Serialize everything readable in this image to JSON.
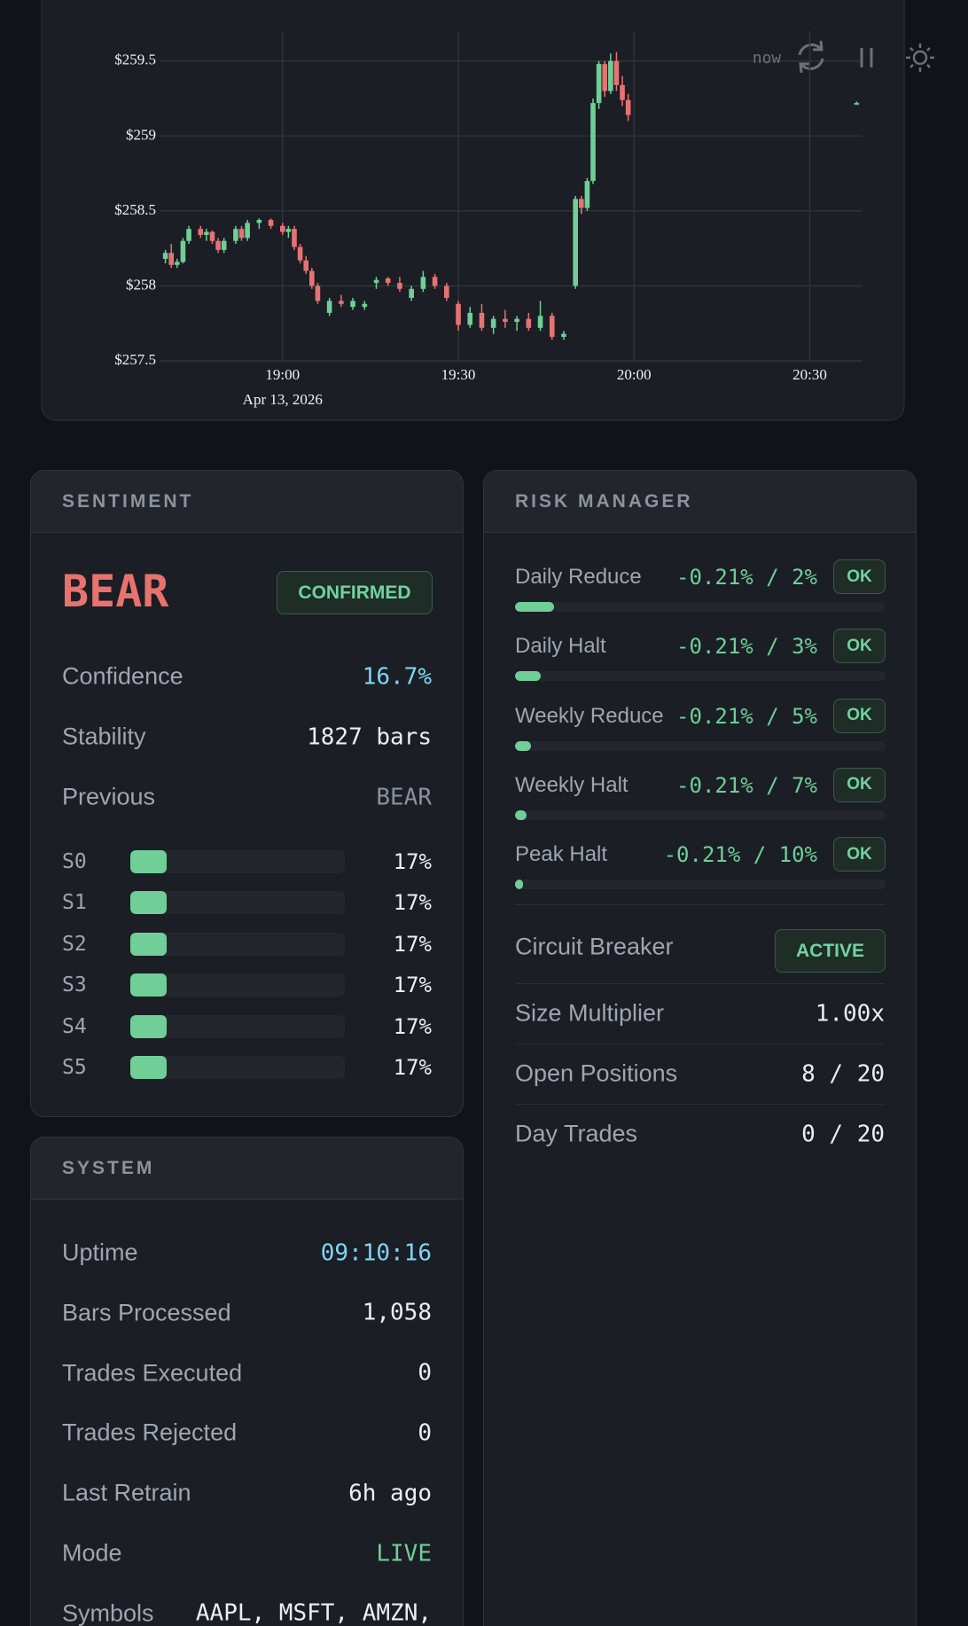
{
  "chart_data": {
    "type": "candlestick",
    "x": [
      "18:40",
      "18:41",
      "18:42",
      "18:43",
      "18:44",
      "18:46",
      "18:47",
      "18:48",
      "18:49",
      "18:50",
      "18:52",
      "18:53",
      "18:54",
      "18:56",
      "18:58",
      "19:00",
      "19:01",
      "19:02",
      "19:03",
      "19:04",
      "19:05",
      "19:06",
      "19:08",
      "19:10",
      "19:12",
      "19:14",
      "19:16",
      "19:18",
      "19:20",
      "19:22",
      "19:24",
      "19:26",
      "19:28",
      "19:30",
      "19:32",
      "19:34",
      "19:36",
      "19:38",
      "19:40",
      "19:42",
      "19:44",
      "19:46",
      "19:48",
      "19:50",
      "19:51",
      "19:52",
      "19:53",
      "19:54",
      "19:55",
      "19:56",
      "19:57",
      "19:58",
      "19:59",
      "20:38"
    ],
    "open": [
      258.18,
      258.22,
      258.14,
      258.16,
      258.3,
      258.38,
      258.34,
      258.36,
      258.3,
      258.24,
      258.3,
      258.38,
      258.32,
      258.42,
      258.44,
      258.4,
      258.36,
      258.38,
      258.26,
      258.17,
      258.1,
      258.0,
      257.82,
      257.9,
      257.86,
      257.86,
      258.02,
      258.05,
      258.02,
      257.92,
      257.98,
      258.06,
      258.0,
      257.88,
      257.74,
      257.82,
      257.72,
      257.78,
      257.76,
      257.78,
      257.72,
      257.8,
      257.66,
      258.0,
      258.58,
      258.52,
      258.7,
      259.22,
      259.48,
      259.3,
      259.5,
      259.34,
      259.24,
      259.22
    ],
    "high": [
      258.24,
      258.28,
      258.18,
      258.32,
      258.4,
      258.4,
      258.38,
      258.37,
      258.32,
      258.32,
      258.4,
      258.4,
      258.44,
      258.45,
      258.45,
      258.42,
      258.4,
      258.4,
      258.28,
      258.2,
      258.12,
      258.02,
      257.92,
      257.94,
      257.92,
      257.9,
      258.06,
      258.06,
      258.06,
      258.0,
      258.1,
      258.08,
      258.02,
      257.9,
      257.86,
      257.88,
      257.8,
      257.84,
      257.8,
      257.82,
      257.9,
      257.82,
      257.7,
      258.6,
      258.6,
      258.72,
      259.25,
      259.5,
      259.5,
      259.55,
      259.56,
      259.4,
      259.28,
      259.23
    ],
    "low": [
      258.15,
      258.12,
      258.12,
      258.15,
      258.28,
      258.32,
      258.3,
      258.28,
      258.22,
      258.22,
      258.28,
      258.3,
      258.3,
      258.38,
      258.38,
      258.34,
      258.32,
      258.24,
      258.15,
      258.08,
      257.98,
      257.88,
      257.8,
      257.86,
      257.84,
      257.84,
      257.98,
      258.0,
      257.96,
      257.9,
      257.96,
      257.98,
      257.9,
      257.7,
      257.72,
      257.7,
      257.68,
      257.72,
      257.7,
      257.7,
      257.7,
      257.64,
      257.64,
      257.98,
      258.48,
      258.5,
      258.68,
      259.18,
      259.26,
      259.28,
      259.3,
      259.2,
      259.1,
      259.21
    ],
    "close": [
      258.22,
      258.14,
      258.16,
      258.3,
      258.38,
      258.34,
      258.36,
      258.3,
      258.24,
      258.3,
      258.38,
      258.32,
      258.42,
      258.44,
      258.4,
      258.36,
      258.38,
      258.26,
      258.17,
      258.1,
      258.0,
      257.9,
      257.9,
      257.88,
      257.9,
      257.88,
      258.04,
      258.02,
      257.98,
      257.98,
      258.06,
      258.0,
      257.92,
      257.74,
      257.82,
      257.72,
      257.78,
      257.76,
      257.78,
      257.72,
      257.8,
      257.66,
      257.68,
      258.58,
      258.52,
      258.7,
      259.22,
      259.48,
      259.3,
      259.5,
      259.34,
      259.24,
      259.14,
      259.22
    ],
    "up_color": "#6fcf97",
    "down_color": "#e57373",
    "xlim": [
      "18:39",
      "20:39"
    ],
    "xticks": [
      "19:00",
      "19:30",
      "20:00",
      "20:30"
    ],
    "ylim": [
      257.5,
      259.7
    ],
    "yticks": [
      {
        "value": 257.5,
        "label": "$257.5"
      },
      {
        "value": 258,
        "label": "$258"
      },
      {
        "value": 258.5,
        "label": "$258.5"
      },
      {
        "value": 259,
        "label": "$259"
      },
      {
        "value": 259.5,
        "label": "$259.5"
      }
    ],
    "grid": true,
    "date_label": "Apr 13, 2026"
  },
  "toolbar": {
    "label": "now"
  },
  "sentiment": {
    "title": "SENTIMENT",
    "state": "BEAR",
    "state_color": "#e8736e",
    "badge": "CONFIRMED",
    "rows": [
      {
        "label": "Confidence",
        "value": "16.7%",
        "color": "#7fd6f2"
      },
      {
        "label": "Stability",
        "value": "1827 bars"
      },
      {
        "label": "Previous",
        "value": "BEAR",
        "color": "#8b909a"
      }
    ],
    "states": {
      "names": [
        "S0",
        "S1",
        "S2",
        "S3",
        "S4",
        "S5"
      ],
      "values": [
        17,
        17,
        17,
        17,
        17,
        17
      ],
      "value_labels": [
        "17%",
        "17%",
        "17%",
        "17%",
        "17%",
        "17%"
      ],
      "color": "#6fcf97"
    }
  },
  "risk": {
    "title": "RISK MANAGER",
    "color": "#6fcf97",
    "limits": [
      {
        "label": "Daily Reduce",
        "current": -0.21,
        "limit": 2,
        "value_label": "-0.21% / 2%",
        "status": "OK"
      },
      {
        "label": "Daily Halt",
        "current": -0.21,
        "limit": 3,
        "value_label": "-0.21% / 3%",
        "status": "OK"
      },
      {
        "label": "Weekly Reduce",
        "current": -0.21,
        "limit": 5,
        "value_label": "-0.21% / 5%",
        "status": "OK"
      },
      {
        "label": "Weekly Halt",
        "current": -0.21,
        "limit": 7,
        "value_label": "-0.21% / 7%",
        "status": "OK"
      },
      {
        "label": "Peak Halt",
        "current": -0.21,
        "limit": 10,
        "value_label": "-0.21% / 10%",
        "status": "OK"
      }
    ],
    "circuit_breaker": {
      "label": "Circuit Breaker",
      "badge": "ACTIVE"
    },
    "rows": [
      {
        "label": "Size Multiplier",
        "value": "1.00x"
      },
      {
        "label": "Open Positions",
        "value": "8 / 20"
      },
      {
        "label": "Day Trades",
        "value": "0 / 20"
      }
    ]
  },
  "system": {
    "title": "SYSTEM",
    "rows": [
      {
        "label": "Uptime",
        "value": "09:10:16",
        "color": "#7fd6f2"
      },
      {
        "label": "Bars Processed",
        "value": "1,058"
      },
      {
        "label": "Trades Executed",
        "value": "0"
      },
      {
        "label": "Trades Rejected",
        "value": "0"
      },
      {
        "label": "Last Retrain",
        "value": "6h ago"
      },
      {
        "label": "Mode",
        "value": "LIVE",
        "color": "#6fcf97"
      },
      {
        "label": "Symbols",
        "value": "AAPL, MSFT, AMZN,"
      }
    ]
  }
}
